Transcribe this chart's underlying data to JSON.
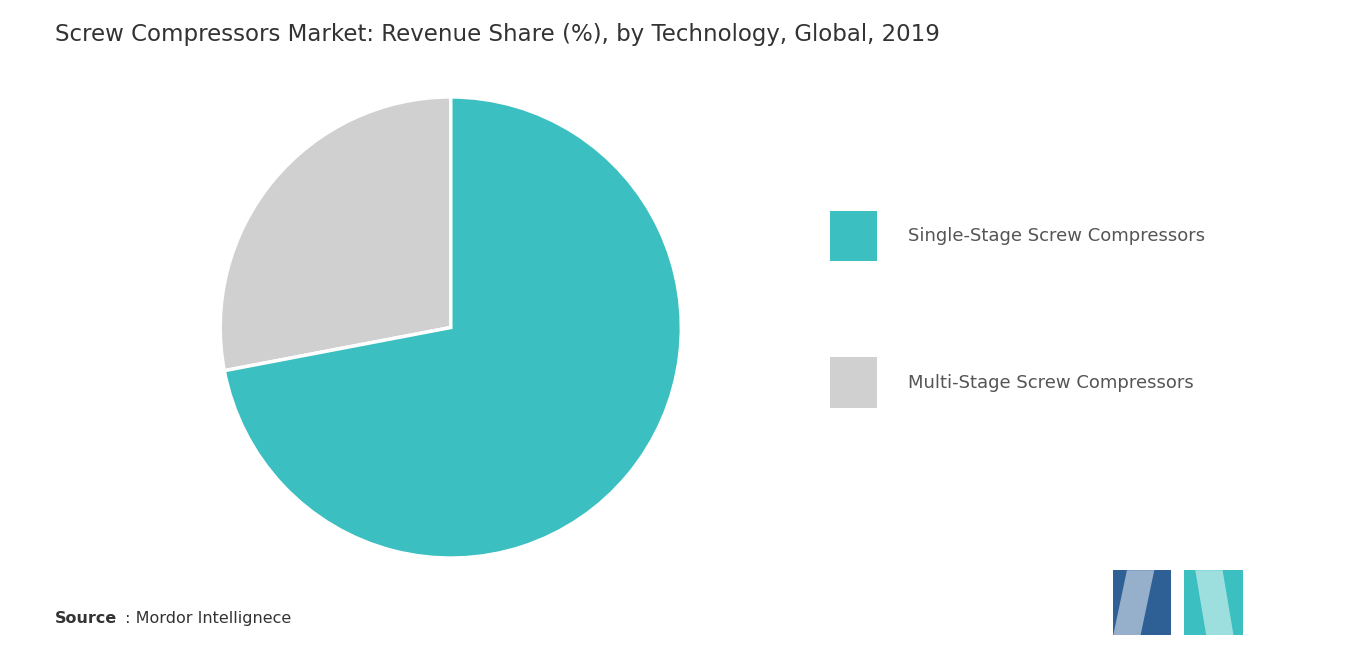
{
  "title": "Screw Compressors Market: Revenue Share (%), by Technology, Global, 2019",
  "slices": [
    72,
    28
  ],
  "labels": [
    "Single-Stage Screw Compressors",
    "Multi-Stage Screw Compressors"
  ],
  "colors": [
    "#3bbfc0",
    "#d0d0d0"
  ],
  "background_color": "#ffffff",
  "title_fontsize": 16.5,
  "legend_fontsize": 13,
  "source_bold": "Source",
  "source_rest": " : Mordor Intellignece",
  "startangle": 90,
  "logo_left_color": "#2e6096",
  "logo_right_color": "#3bbfc0"
}
